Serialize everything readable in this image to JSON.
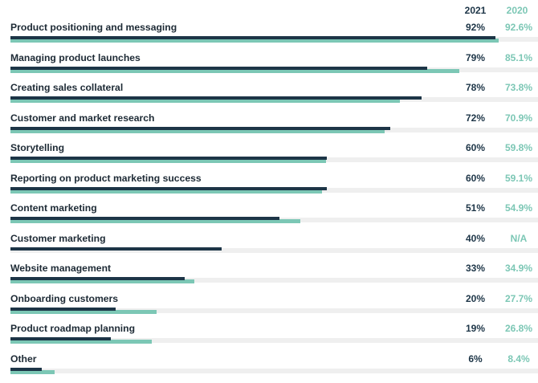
{
  "chart_data": {
    "type": "bar",
    "orientation": "horizontal",
    "headers": [
      "2021",
      "2020"
    ],
    "categories": [
      "Product positioning and messaging",
      "Managing product launches",
      "Creating sales collateral",
      "Customer and market research",
      "Storytelling",
      "Reporting on product marketing success",
      "Content marketing",
      "Customer marketing",
      "Website management",
      "Onboarding customers",
      "Product roadmap planning",
      "Other"
    ],
    "series": [
      {
        "name": "2021",
        "color": "#1d3547",
        "values": [
          92,
          79,
          78,
          72,
          60,
          60,
          51,
          40,
          33,
          20,
          19,
          6
        ],
        "labels": [
          "92%",
          "79%",
          "78%",
          "72%",
          "60%",
          "60%",
          "51%",
          "40%",
          "33%",
          "20%",
          "19%",
          "6%"
        ]
      },
      {
        "name": "2020",
        "color": "#7cc7b5",
        "values": [
          92.6,
          85.1,
          73.8,
          70.9,
          59.8,
          59.1,
          54.9,
          null,
          34.9,
          27.7,
          26.8,
          8.4
        ],
        "labels": [
          "92.6%",
          "85.1%",
          "73.8%",
          "70.9%",
          "59.8%",
          "59.1%",
          "54.9%",
          "N/A",
          "34.9%",
          "27.7%",
          "26.8%",
          "8.4%"
        ]
      }
    ],
    "xlim": [
      0,
      100
    ],
    "track_color": "#efefef",
    "legend": "top-right"
  }
}
